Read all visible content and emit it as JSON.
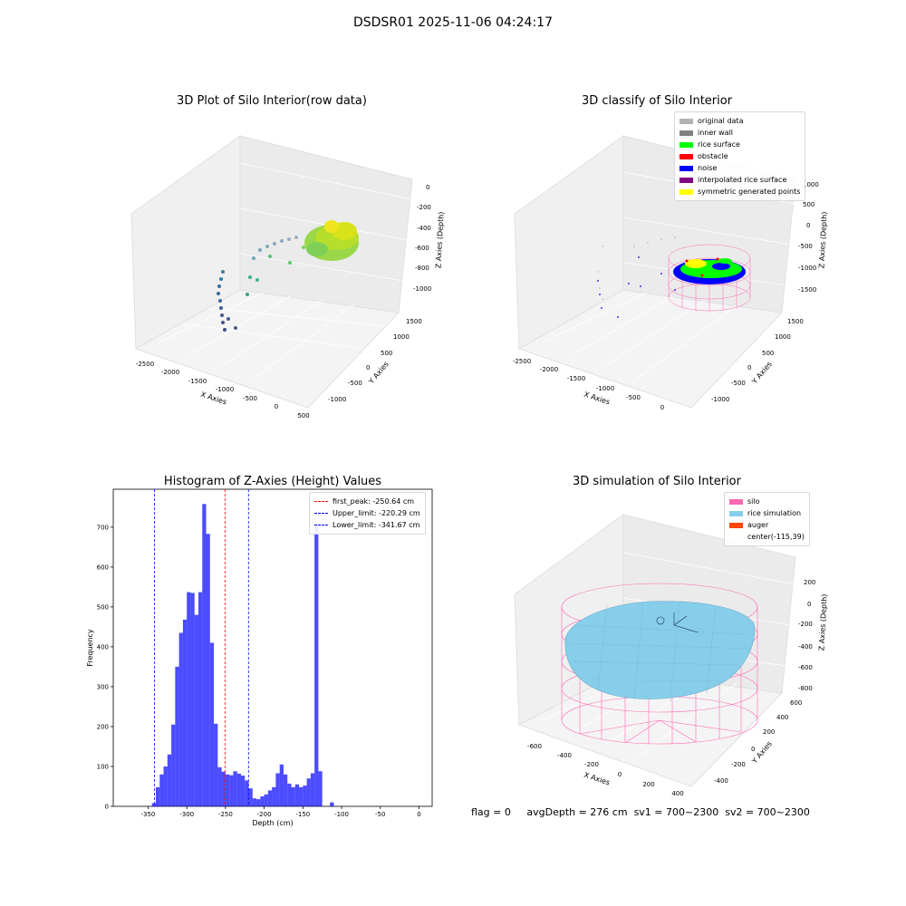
{
  "figure_title": "DSDSR01 2025-11-06 04:24:17",
  "footer": {
    "flag": "flag = 0",
    "avg_depth": "avgDepth = 276 cm",
    "sv1": "sv1 = 700~2300",
    "sv2": "sv2 = 700~2300"
  },
  "panels": {
    "raw": {
      "title": "3D Plot of Silo Interior(row data)",
      "xlabel": "X Axies",
      "ylabel": "Y Axies",
      "zlabel": "Z Axies (Depth)",
      "xticks": [
        "-2500",
        "-2000",
        "-1500",
        "-1000",
        "-500",
        "0",
        "500"
      ],
      "yticks": [
        "-1000",
        "-500",
        "0",
        "500",
        "1000",
        "1500"
      ],
      "zticks": [
        "0",
        "-200",
        "-400",
        "-600",
        "-800",
        "-1000"
      ]
    },
    "classify": {
      "title": "3D classify of Silo Interior",
      "xlabel": "X Axies",
      "ylabel": "Y Axies",
      "zlabel": "Z Axies (Depth)",
      "xticks": [
        "-2500",
        "-2000",
        "-1500",
        "-1000",
        "-500",
        "0"
      ],
      "yticks": [
        "-1000",
        "-500",
        "0",
        "500",
        "1000",
        "1500"
      ],
      "zticks": [
        "1000",
        "500",
        "0",
        "-500",
        "-1000",
        "-1500"
      ],
      "legend": [
        {
          "label": "original data",
          "color": "#b3b3b3"
        },
        {
          "label": "inner wall",
          "color": "#808080"
        },
        {
          "label": "rice surface",
          "color": "#00ff00"
        },
        {
          "label": "obstacle",
          "color": "#ff0000"
        },
        {
          "label": "noise",
          "color": "#0000ff"
        },
        {
          "label": "interpolated rice surface",
          "color": "#800080"
        },
        {
          "label": "symmetric generated points",
          "color": "#ffff00"
        }
      ]
    },
    "simulation": {
      "title": "3D simulation of Silo Interior",
      "xlabel": "X Axies",
      "ylabel": "Y Axies",
      "zlabel": "Z Axies (Depth)",
      "xticks": [
        "-600",
        "-400",
        "-200",
        "0",
        "200",
        "400"
      ],
      "yticks": [
        "-400",
        "-200",
        "0",
        "200",
        "400",
        "600"
      ],
      "zticks": [
        "200",
        "0",
        "-200",
        "-400",
        "-600",
        "-800"
      ],
      "legend": [
        {
          "label": "silo",
          "color": "#ff69b4"
        },
        {
          "label": "rice simulation",
          "color": "#87ceeb"
        },
        {
          "label": "auger",
          "color": "#ff4500"
        },
        {
          "label": "center(-115,39)",
          "color": "#ffffff"
        }
      ]
    }
  },
  "chart_data": {
    "type": "bar",
    "title": "Histogram of Z-Axies (Height) Values",
    "xlabel": "Depth (cm)",
    "ylabel": "Frequency",
    "xlim": [
      -395,
      17
    ],
    "ylim": [
      0,
      795
    ],
    "xticks": [
      -350,
      -300,
      -250,
      -200,
      -150,
      -100,
      -50,
      0
    ],
    "yticks": [
      0,
      100,
      200,
      300,
      400,
      500,
      600,
      700
    ],
    "bar_color": "#0000ff",
    "bins": [
      {
        "start": -345,
        "end": -340,
        "value": 8
      },
      {
        "start": -340,
        "end": -335,
        "value": 48
      },
      {
        "start": -335,
        "end": -330,
        "value": 80
      },
      {
        "start": -330,
        "end": -325,
        "value": 100
      },
      {
        "start": -325,
        "end": -320,
        "value": 130
      },
      {
        "start": -320,
        "end": -315,
        "value": 205
      },
      {
        "start": -315,
        "end": -310,
        "value": 350
      },
      {
        "start": -310,
        "end": -305,
        "value": 435
      },
      {
        "start": -305,
        "end": -300,
        "value": 468
      },
      {
        "start": -300,
        "end": -295,
        "value": 537
      },
      {
        "start": -295,
        "end": -290,
        "value": 535
      },
      {
        "start": -290,
        "end": -285,
        "value": 480
      },
      {
        "start": -285,
        "end": -280,
        "value": 537
      },
      {
        "start": -280,
        "end": -275,
        "value": 758
      },
      {
        "start": -275,
        "end": -270,
        "value": 683
      },
      {
        "start": -270,
        "end": -265,
        "value": 410
      },
      {
        "start": -265,
        "end": -260,
        "value": 207
      },
      {
        "start": -260,
        "end": -255,
        "value": 98
      },
      {
        "start": -255,
        "end": -250,
        "value": 87
      },
      {
        "start": -250,
        "end": -245,
        "value": 80
      },
      {
        "start": -245,
        "end": -240,
        "value": 78
      },
      {
        "start": -240,
        "end": -235,
        "value": 88
      },
      {
        "start": -235,
        "end": -230,
        "value": 82
      },
      {
        "start": -230,
        "end": -225,
        "value": 77
      },
      {
        "start": -225,
        "end": -220,
        "value": 65
      },
      {
        "start": -220,
        "end": -215,
        "value": 45
      },
      {
        "start": -215,
        "end": -210,
        "value": 20
      },
      {
        "start": -210,
        "end": -205,
        "value": 18
      },
      {
        "start": -205,
        "end": -200,
        "value": 25
      },
      {
        "start": -200,
        "end": -195,
        "value": 30
      },
      {
        "start": -195,
        "end": -190,
        "value": 40
      },
      {
        "start": -190,
        "end": -185,
        "value": 48
      },
      {
        "start": -185,
        "end": -180,
        "value": 83
      },
      {
        "start": -180,
        "end": -175,
        "value": 105
      },
      {
        "start": -175,
        "end": -170,
        "value": 80
      },
      {
        "start": -170,
        "end": -165,
        "value": 57
      },
      {
        "start": -165,
        "end": -160,
        "value": 48
      },
      {
        "start": -160,
        "end": -155,
        "value": 55
      },
      {
        "start": -155,
        "end": -150,
        "value": 48
      },
      {
        "start": -150,
        "end": -145,
        "value": 52
      },
      {
        "start": -145,
        "end": -140,
        "value": 70
      },
      {
        "start": -140,
        "end": -135,
        "value": 83
      },
      {
        "start": -135,
        "end": -130,
        "value": 710
      },
      {
        "start": -130,
        "end": -125,
        "value": 88
      },
      {
        "start": -125,
        "end": -120,
        "value": 0
      },
      {
        "start": -120,
        "end": -115,
        "value": 0
      },
      {
        "start": -115,
        "end": -110,
        "value": 10
      }
    ],
    "reference_lines": [
      {
        "label": "first_peak: -250.64 cm",
        "x": -250.64,
        "color": "#ff0000"
      },
      {
        "label": "Upper_limit: -220.29 cm",
        "x": -220.29,
        "color": "#0000ff"
      },
      {
        "label": "Lower_limit: -341.67 cm",
        "x": -341.67,
        "color": "#0000ff"
      }
    ]
  }
}
